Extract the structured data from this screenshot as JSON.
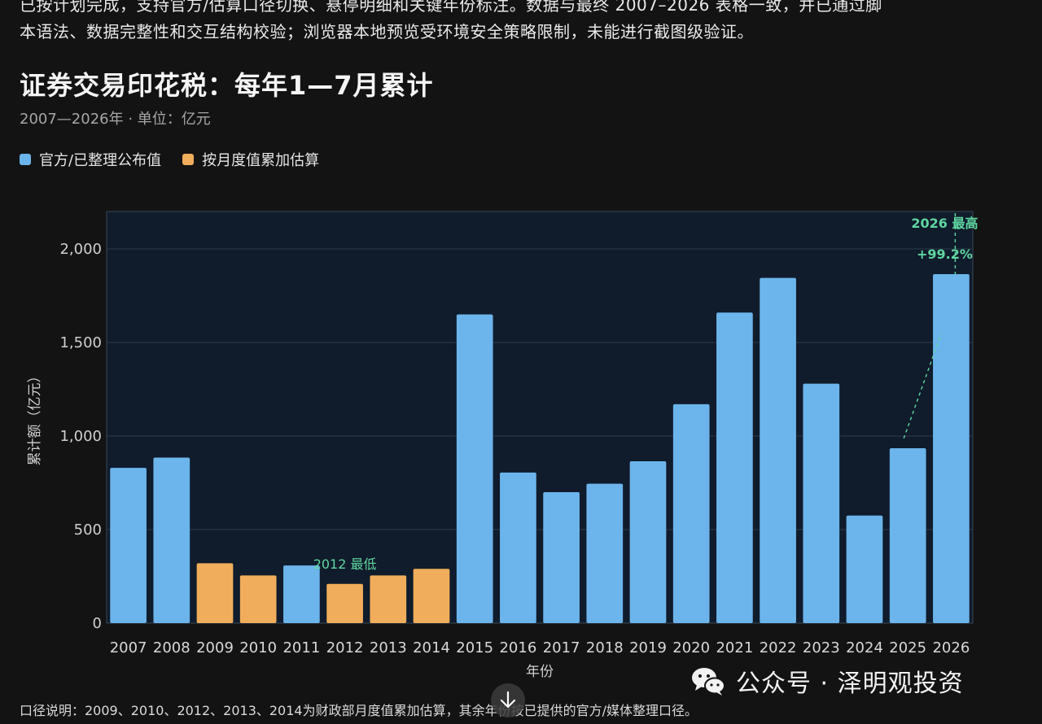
{
  "intro": {
    "line1": "已按计划完成，支持官方/估算口径切换、悬停明细和关键年份标注。数据与最终 2007–2026 表格一致，并已通过脚",
    "line2": "本语法、数据完整性和交互结构校验；浏览器本地预览受环境安全策略限制，未能进行截图级验证。"
  },
  "title": "证券交易印花税：每年1—7月累计",
  "subtitle": "2007—2026年 · 单位：亿元",
  "legend": [
    {
      "label": "官方/已整理公布值",
      "color": "#6cb4ec"
    },
    {
      "label": "按月度值累加估算",
      "color": "#f0ad5b"
    }
  ],
  "chart_data": {
    "type": "bar",
    "categories": [
      "2007",
      "2008",
      "2009",
      "2010",
      "2011",
      "2012",
      "2013",
      "2014",
      "2015",
      "2016",
      "2017",
      "2018",
      "2019",
      "2020",
      "2021",
      "2022",
      "2023",
      "2024",
      "2025",
      "2026"
    ],
    "values": [
      830,
      885,
      320,
      255,
      308,
      210,
      255,
      290,
      1650,
      805,
      700,
      745,
      865,
      1170,
      1660,
      1845,
      1280,
      575,
      935,
      1865
    ],
    "estimated": [
      false,
      false,
      true,
      true,
      false,
      true,
      true,
      true,
      false,
      false,
      false,
      false,
      false,
      false,
      false,
      false,
      false,
      false,
      false,
      false
    ],
    "xlabel": "年份",
    "ylabel": "累计额（亿元）",
    "ylim": [
      0,
      2200
    ],
    "yticks": [
      0,
      500,
      1000,
      1500,
      2000
    ],
    "ytick_labels": [
      "0",
      "500",
      "1,000",
      "1,500",
      "2,000"
    ],
    "grid": true,
    "colors": {
      "official": "#6cb4ec",
      "estimated": "#f0ad5b",
      "annotation": "#5fd6a0",
      "plot_bg": "#101c2b",
      "grid": "#2b3a4b"
    },
    "annotations": {
      "low": {
        "year": "2012",
        "text": "2012 最低"
      },
      "high": {
        "year": "2026",
        "text": "2026 最高",
        "change": "+99.2%"
      }
    }
  },
  "footnote": "口径说明：2009、2010、2012、2013、2014为财政部月度值累加估算，其余年份按已提供的官方/媒体整理口径。",
  "watermark": {
    "text": "公众号 · 泽明观投资",
    "icon": "wechat-icon"
  },
  "scroll_icon": "arrow-down-icon"
}
